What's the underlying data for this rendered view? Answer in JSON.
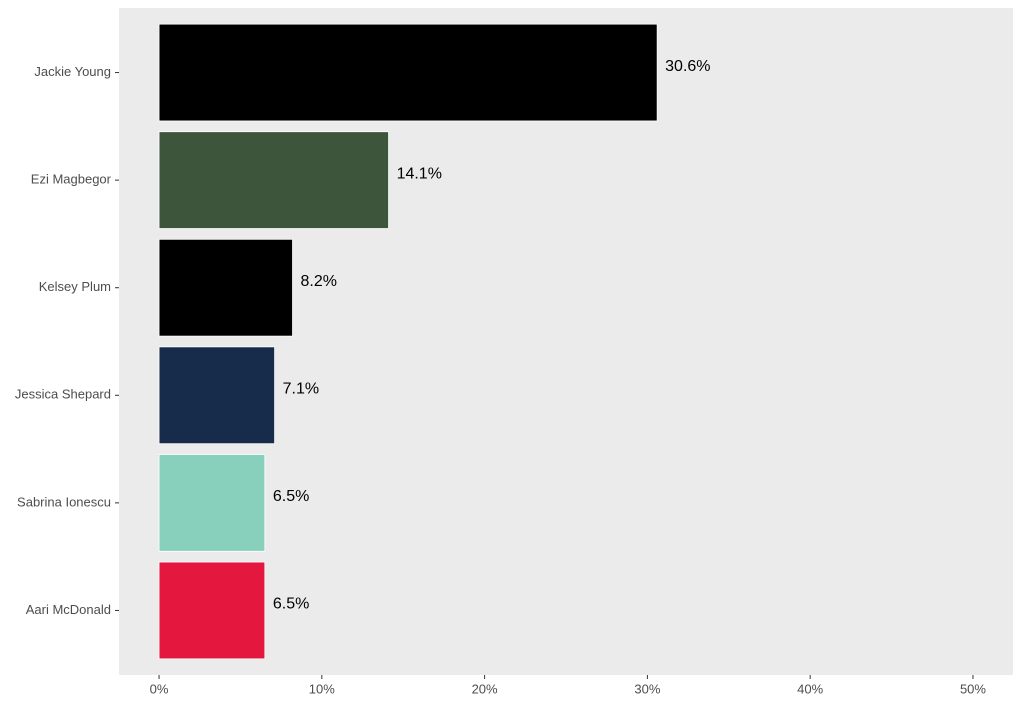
{
  "chart_data": {
    "type": "bar",
    "orientation": "horizontal",
    "categories": [
      "Jackie Young",
      "Ezi Magbegor",
      "Kelsey Plum",
      "Jessica Shepard",
      "Sabrina Ionescu",
      "Aari McDonald"
    ],
    "values": [
      30.6,
      14.1,
      8.2,
      7.1,
      6.5,
      6.5
    ],
    "value_labels": [
      "30.6%",
      "14.1%",
      "8.2%",
      "7.1%",
      "6.5%",
      "6.5%"
    ],
    "colors": [
      "#000000",
      "#3d553b",
      "#000000",
      "#172b4a",
      "#88d0bb",
      "#e4173e"
    ],
    "xlim": [
      -2.46,
      52.46
    ],
    "xticks": [
      {
        "value": 0,
        "label": "0%"
      },
      {
        "value": 10,
        "label": "10%"
      },
      {
        "value": 20,
        "label": "20%"
      },
      {
        "value": 30,
        "label": "30%"
      },
      {
        "value": 40,
        "label": "40%"
      },
      {
        "value": 50,
        "label": "50%"
      }
    ],
    "grid": false
  }
}
